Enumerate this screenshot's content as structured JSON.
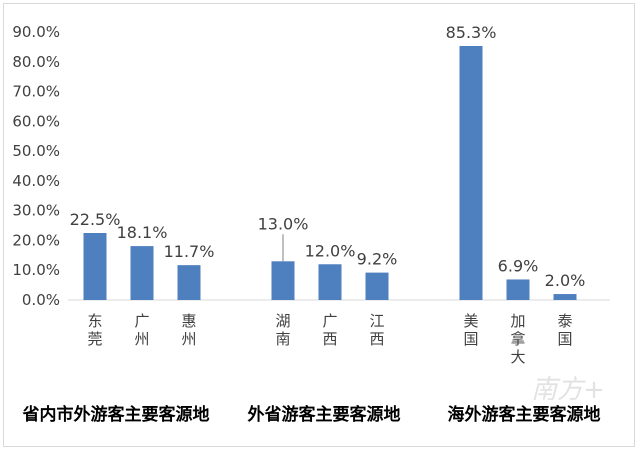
{
  "chart_data": {
    "type": "bar",
    "ylim": [
      0,
      90
    ],
    "yticks": [
      "0.0%",
      "10.0%",
      "20.0%",
      "30.0%",
      "40.0%",
      "50.0%",
      "60.0%",
      "70.0%",
      "80.0%",
      "90.0%"
    ],
    "groups": [
      {
        "name": "省内市外游客主要客源地",
        "categories": [
          "东莞",
          "广州",
          "惠州"
        ],
        "values": [
          22.5,
          18.1,
          11.7
        ],
        "labels": [
          "22.5%",
          "18.1%",
          "11.7%"
        ]
      },
      {
        "name": "外省游客主要客源地",
        "categories": [
          "湖南",
          "广西",
          "江西"
        ],
        "values": [
          13.0,
          12.0,
          9.2
        ],
        "labels": [
          "13.0%",
          "12.0%",
          "9.2%"
        ]
      },
      {
        "name": "海外游客主要客源地",
        "categories": [
          "美国",
          "加拿大",
          "泰国"
        ],
        "values": [
          85.3,
          6.9,
          2.0
        ],
        "labels": [
          "85.3%",
          "6.9%",
          "2.0%"
        ]
      }
    ],
    "bar_color": "#4e7fbf",
    "grid": false
  },
  "watermark": {
    "text": "南方+"
  }
}
